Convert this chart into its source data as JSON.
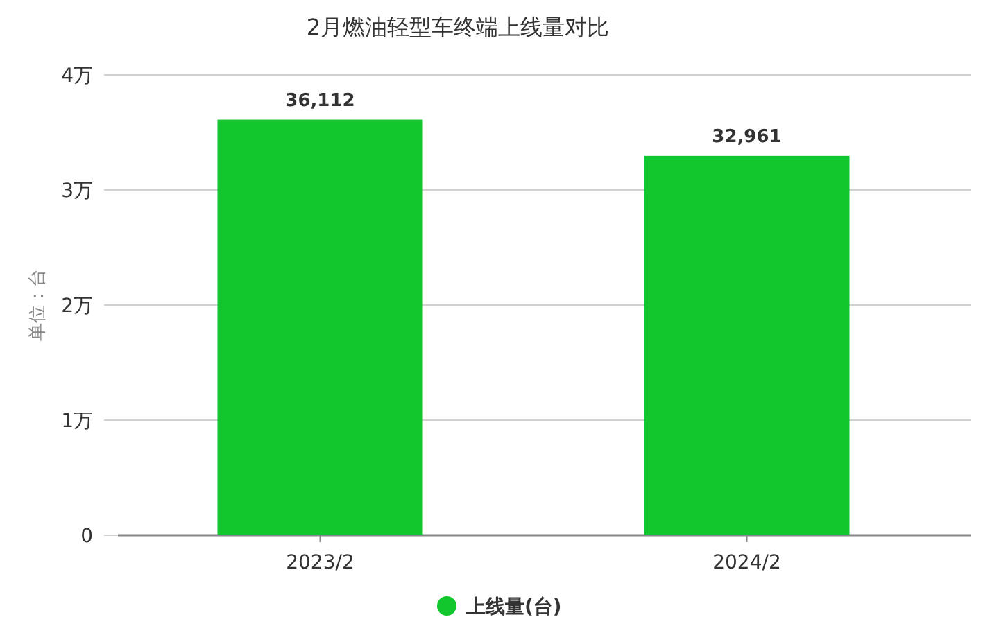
{
  "chart_data": {
    "type": "bar",
    "title": "2月燃油轻型车终端上线量对比",
    "ylabel": "单位：台",
    "categories": [
      "2023/2",
      "2024/2"
    ],
    "series": [
      {
        "name": "上线量(台)",
        "color": "#12c62d",
        "values": [
          3.6112,
          3.2961
        ]
      }
    ],
    "value_labels": [
      "36,112",
      "32,961"
    ],
    "ylim": [
      0,
      4
    ],
    "yticks": [
      0,
      {
        "value": 1,
        "label": "1万"
      },
      {
        "value": 2,
        "label": "2万"
      },
      {
        "value": 3,
        "label": "3万"
      },
      {
        "value": 4,
        "label": "4万"
      }
    ],
    "grid": "y",
    "legend": "bottom"
  }
}
